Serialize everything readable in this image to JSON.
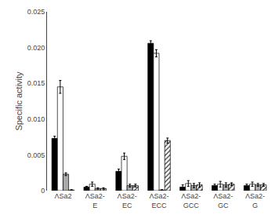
{
  "chart_data": {
    "type": "bar",
    "ylabel": "Specific activity",
    "categories": [
      "ΛSa2",
      "ΛSa2-\nE",
      "ΛSa2-\nEC",
      "ΛSa2-\nECC",
      "ΛSa2-\nGCC",
      "ΛSa2-\nGC",
      "ΛSa2-\nG"
    ],
    "series": [
      {
        "color": "#000000",
        "values": [
          0.0073,
          0.0005,
          0.0027,
          0.0206,
          0.0005,
          0.0007,
          0.0007
        ],
        "errors": [
          0.0003,
          0.0001,
          0.0003,
          0.00035,
          0.0003,
          0.0002,
          0.0002
        ]
      },
      {
        "color": "#ffffff",
        "values": [
          0.0145,
          0.0009,
          0.0048,
          0.0192,
          0.001,
          0.0009,
          0.0009
        ],
        "errors": [
          0.0009,
          0.0003,
          0.00045,
          0.0005,
          0.0004,
          0.0004,
          0.0003
        ]
      },
      {
        "color": "#aaaaaa",
        "values": [
          0.0023,
          0.0003,
          0.0007,
          8e-05,
          0.0007,
          0.0008,
          0.0008
        ],
        "errors": [
          0.0002,
          0.0001,
          0.0002,
          5e-05,
          0.0003,
          0.0003,
          0.0002
        ]
      },
      {
        "color": "#ffffff",
        "values": [
          8e-05,
          0.0003,
          0.0007,
          0.007,
          0.0008,
          0.0009,
          0.0008
        ],
        "errors": [
          5e-05,
          0.0001,
          0.0002,
          0.00035,
          0.0003,
          0.0002,
          0.0002
        ]
      }
    ],
    "ylim": [
      0,
      0.025
    ],
    "yticks": [
      0,
      0.005,
      {
        "value": 0.01,
        "label": "0.010"
      },
      0.015,
      {
        "value": 0.02,
        "label": "0.020"
      },
      0.025
    ],
    "grid": false
  }
}
